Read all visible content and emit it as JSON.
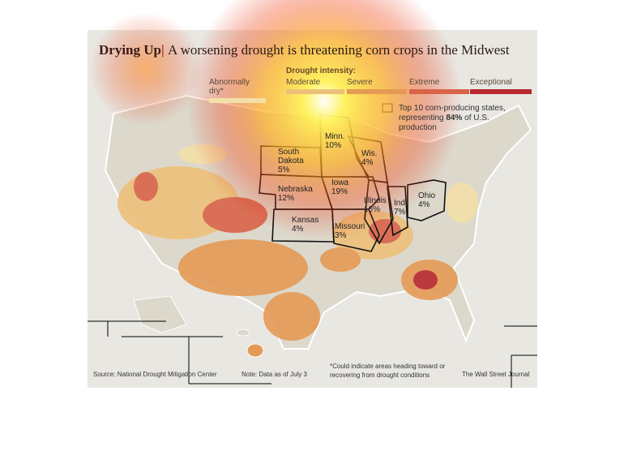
{
  "header": {
    "title": "Drying Up",
    "subtitle": "A worsening drought is threatening corn crops in the Midwest"
  },
  "legend": {
    "title": "Drought intensity:",
    "items": [
      {
        "label": "Abnormally dry*",
        "color": "#f3dfa8"
      },
      {
        "label": "Moderate",
        "color": "#edc07a"
      },
      {
        "label": "Severe",
        "color": "#e49a55"
      },
      {
        "label": "Extreme",
        "color": "#d9644a"
      },
      {
        "label": "Exceptional",
        "color": "#b8282e"
      }
    ],
    "key": {
      "before": "Top 10 corn-producing states, representing ",
      "bold": "84%",
      "after": " of U.S. production"
    }
  },
  "states": [
    {
      "name": "Minn.",
      "share": "10%"
    },
    {
      "name": "Wis.",
      "share": "4%"
    },
    {
      "name": "South Dakota",
      "share": "5%"
    },
    {
      "name": "Nebraska",
      "share": "12%"
    },
    {
      "name": "Iowa",
      "share": "19%"
    },
    {
      "name": "Illinois",
      "share": "16%"
    },
    {
      "name": "Ind.",
      "share": "7%"
    },
    {
      "name": "Ohio",
      "share": "4%"
    },
    {
      "name": "Kansas",
      "share": "4%"
    },
    {
      "name": "Missouri",
      "share": "3%"
    }
  ],
  "footer": {
    "source": "Source: National Drought Mitigation Center",
    "note": "Note: Data as of July 3",
    "footnote": "*Could indicate areas heading toward or recovering from drought conditions",
    "credit": "The Wall Street Journal"
  }
}
